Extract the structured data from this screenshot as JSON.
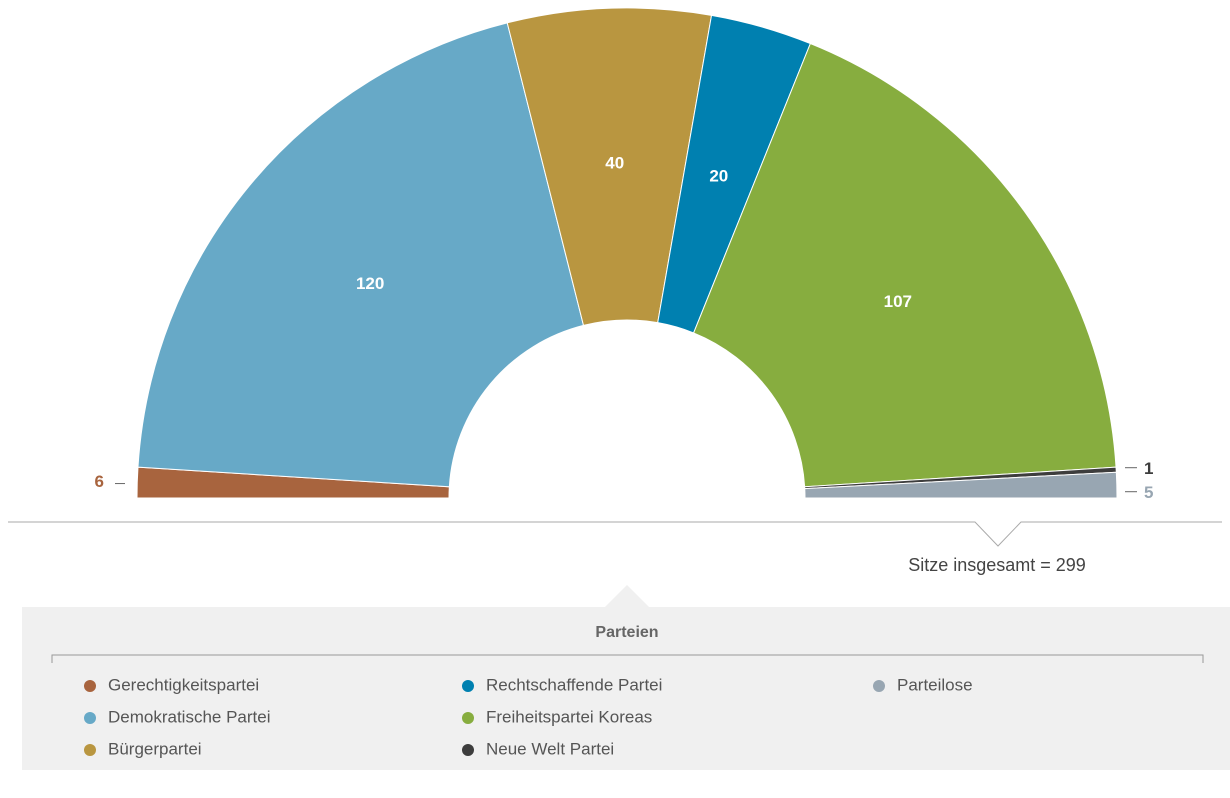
{
  "chart_data": {
    "type": "semicircle",
    "categories": [
      "Gerechtigkeitspartei",
      "Demokratische Partei",
      "Bürgerpartei",
      "Rechtschaffende Partei",
      "Freiheitspartei Koreas",
      "Neue Welt Partei",
      "Parteilose"
    ],
    "values": [
      6,
      120,
      40,
      20,
      107,
      1,
      5
    ],
    "colors": [
      "#a8643e",
      "#67a9c7",
      "#b99640",
      "#0080b0",
      "#87ad3f",
      "#3d3d3d",
      "#98a6b2"
    ],
    "annotation": "Sitze insgesamt = 299",
    "legend_title": "Parteien"
  }
}
